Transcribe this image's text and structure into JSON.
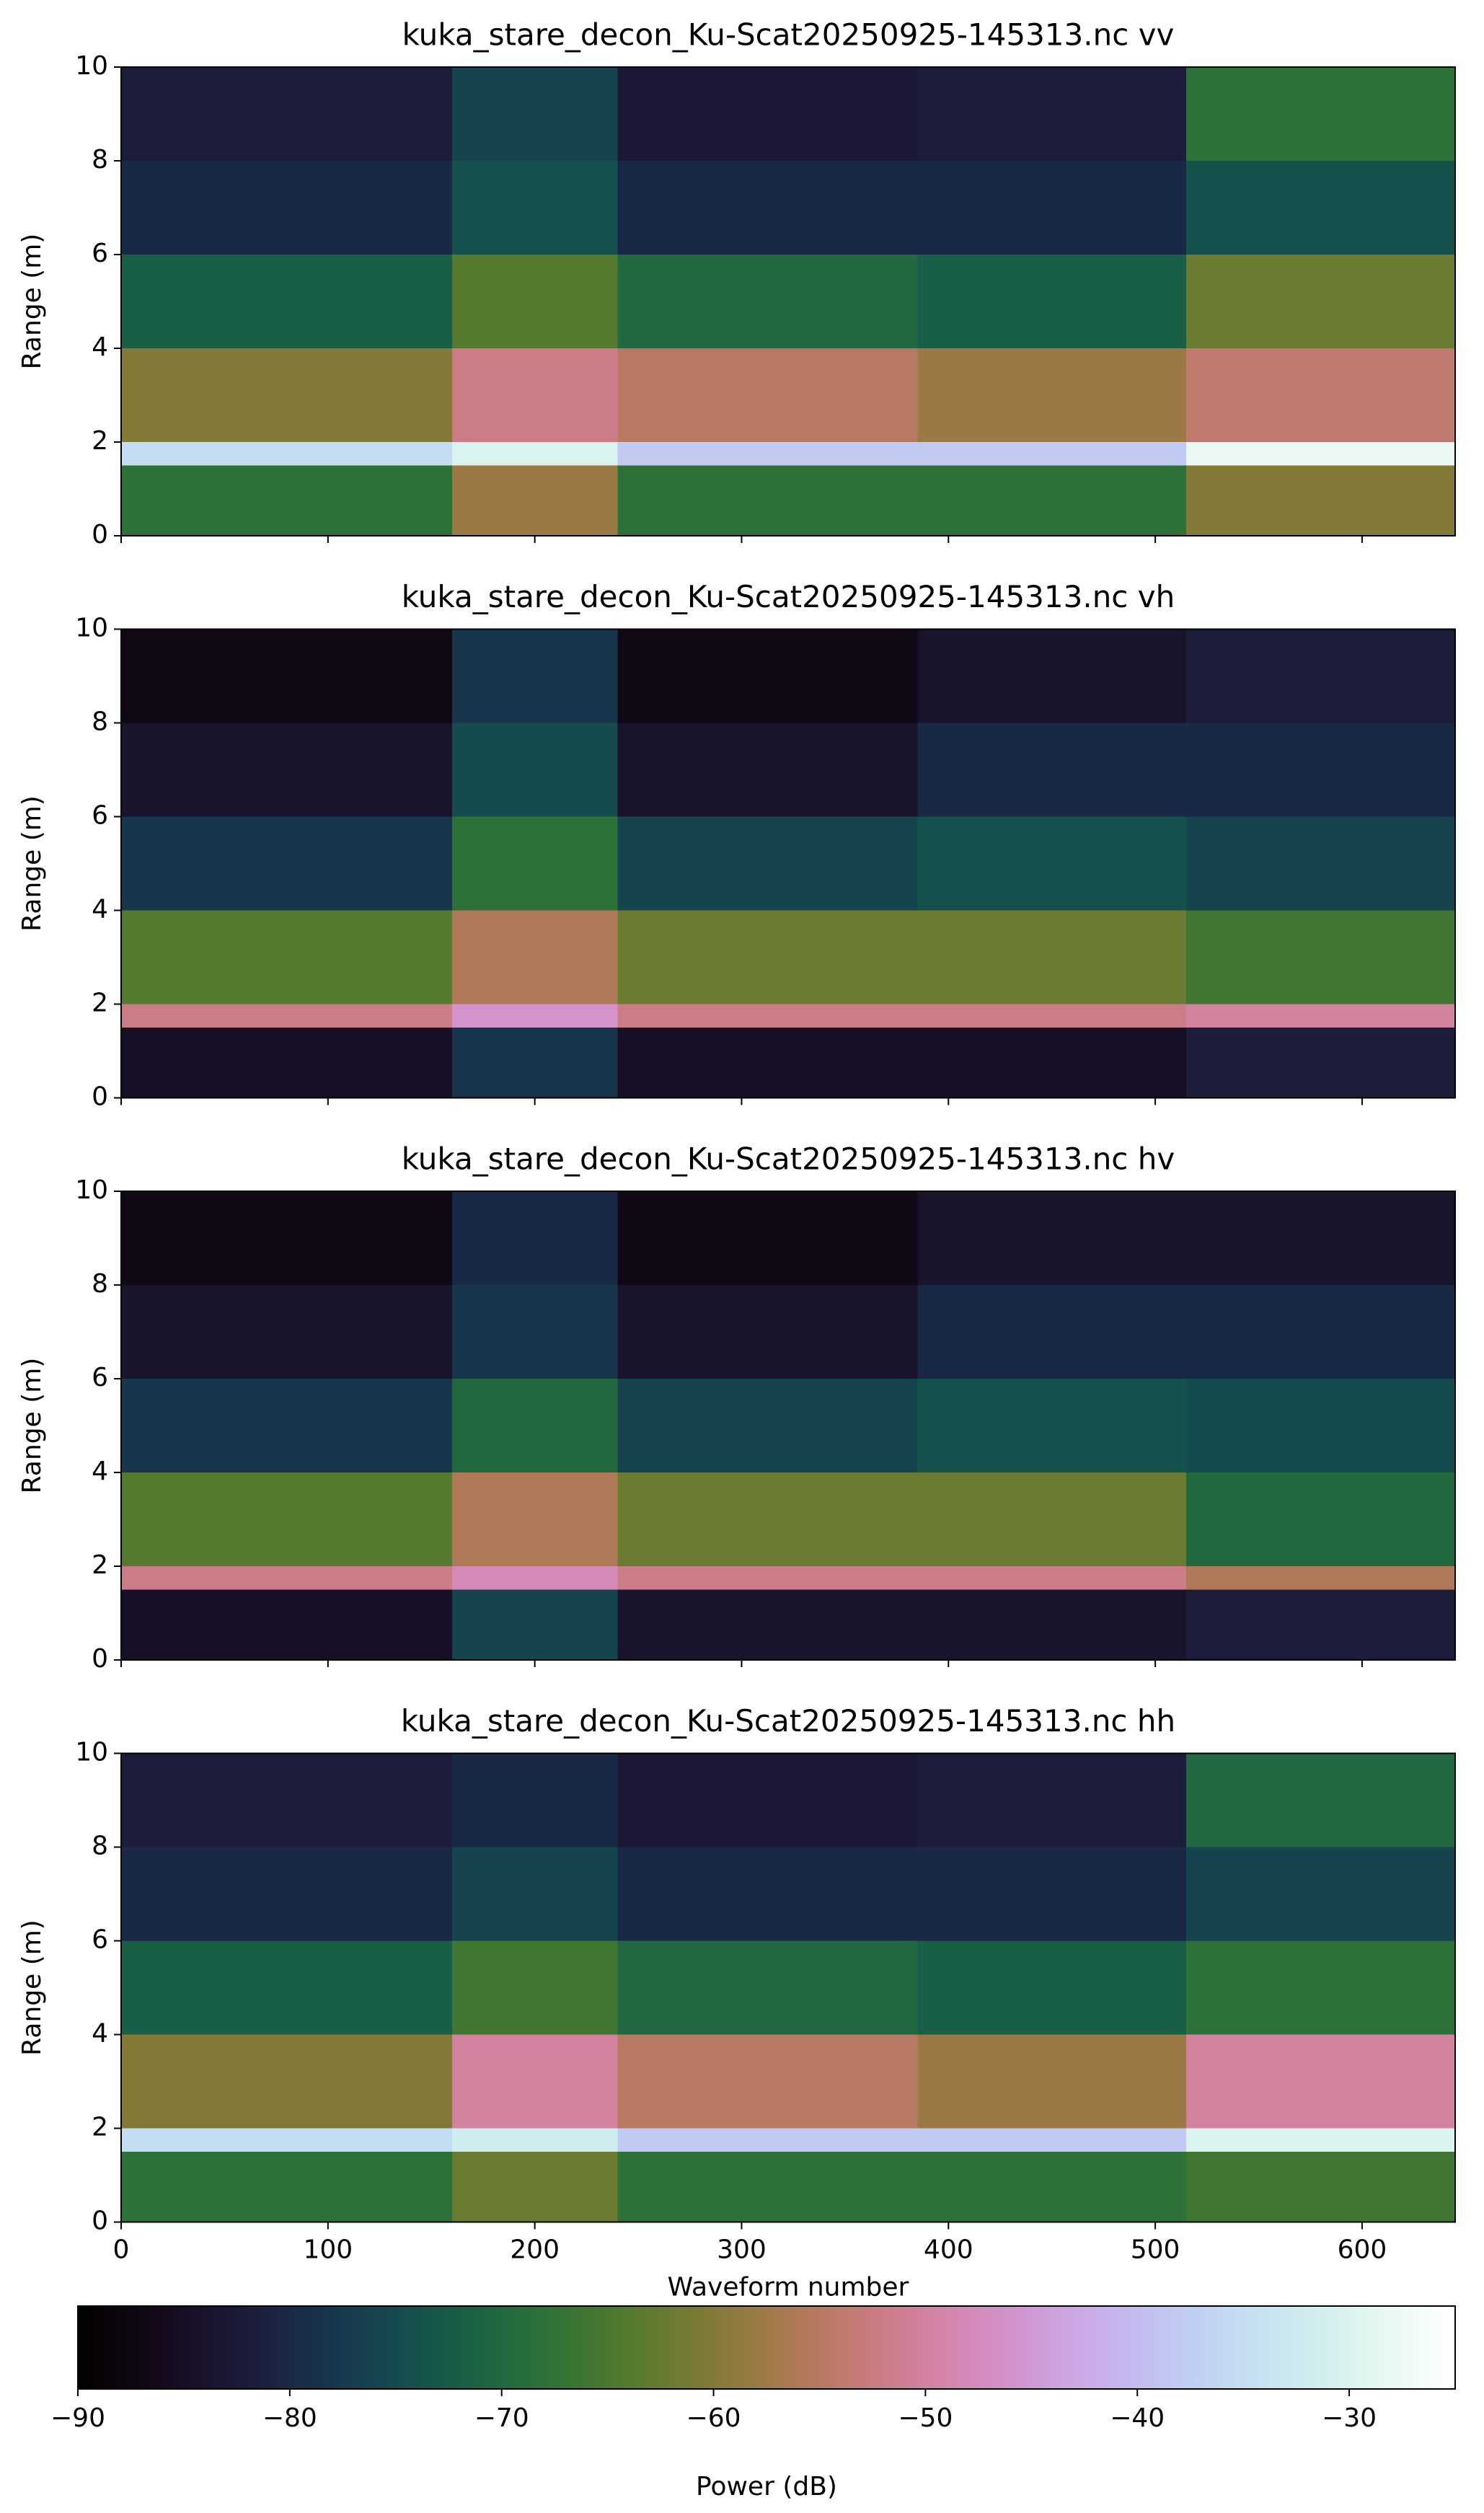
{
  "chart_data": [
    {
      "type": "heatmap",
      "title": "kuka_stare_decon_Ku-Scat20250925-145313.nc vv",
      "ylabel": "Range (m)",
      "xlim": [
        0,
        645
      ],
      "ylim": [
        10,
        0
      ],
      "xticks": [
        0,
        100,
        200,
        300,
        400,
        500,
        600
      ],
      "yticks": [
        0,
        2,
        4,
        6,
        8,
        10
      ],
      "xticklabels": false,
      "x_edges": [
        0,
        160,
        240,
        385,
        515,
        645
      ],
      "y_edges": [
        0,
        1.5,
        2,
        4,
        6,
        8,
        10
      ],
      "z": [
        [
          -68,
          -58,
          -68,
          -68,
          -60
        ],
        [
          -35,
          -30,
          -38,
          -38,
          -28
        ],
        [
          -60,
          -52,
          -55,
          -58,
          -54
        ],
        [
          -72,
          -64,
          -70,
          -72,
          -62
        ],
        [
          -80,
          -74,
          -80,
          -80,
          -74
        ],
        [
          -82,
          -76,
          -83,
          -82,
          -68
        ]
      ]
    },
    {
      "type": "heatmap",
      "title": "kuka_stare_decon_Ku-Scat20250925-145313.nc vh",
      "ylabel": "Range (m)",
      "xlim": [
        0,
        645
      ],
      "ylim": [
        10,
        0
      ],
      "xticks": [
        0,
        100,
        200,
        300,
        400,
        500,
        600
      ],
      "yticks": [
        0,
        2,
        4,
        6,
        8,
        10
      ],
      "xticklabels": false,
      "x_edges": [
        0,
        160,
        240,
        385,
        515,
        645
      ],
      "y_edges": [
        0,
        1.5,
        2,
        4,
        6,
        8,
        10
      ],
      "z": [
        [
          -85,
          -78,
          -85,
          -85,
          -82
        ],
        [
          -52,
          -46,
          -52,
          -52,
          -50
        ],
        [
          -64,
          -56,
          -62,
          -62,
          -66
        ],
        [
          -78,
          -68,
          -76,
          -74,
          -76
        ],
        [
          -84,
          -75,
          -84,
          -80,
          -80
        ],
        [
          -87,
          -78,
          -87,
          -84,
          -82
        ]
      ]
    },
    {
      "type": "heatmap",
      "title": "kuka_stare_decon_Ku-Scat20250925-145313.nc hv",
      "ylabel": "Range (m)",
      "xlim": [
        0,
        645
      ],
      "ylim": [
        10,
        0
      ],
      "xticks": [
        0,
        100,
        200,
        300,
        400,
        500,
        600
      ],
      "yticks": [
        0,
        2,
        4,
        6,
        8,
        10
      ],
      "xticklabels": false,
      "x_edges": [
        0,
        160,
        240,
        385,
        515,
        645
      ],
      "y_edges": [
        0,
        1.5,
        2,
        4,
        6,
        8,
        10
      ],
      "z": [
        [
          -85,
          -76,
          -84,
          -84,
          -82
        ],
        [
          -52,
          -48,
          -52,
          -52,
          -56
        ],
        [
          -64,
          -56,
          -62,
          -62,
          -70
        ],
        [
          -78,
          -70,
          -76,
          -74,
          -75
        ],
        [
          -84,
          -78,
          -84,
          -80,
          -80
        ],
        [
          -87,
          -80,
          -87,
          -84,
          -84
        ]
      ]
    },
    {
      "type": "heatmap",
      "title": "kuka_stare_decon_Ku-Scat20250925-145313.nc hh",
      "ylabel": "Range (m)",
      "xlabel": "Waveform number",
      "xlim": [
        0,
        645
      ],
      "ylim": [
        10,
        0
      ],
      "xticks": [
        0,
        100,
        200,
        300,
        400,
        500,
        600
      ],
      "yticks": [
        0,
        2,
        4,
        6,
        8,
        10
      ],
      "xticklabels": true,
      "x_edges": [
        0,
        160,
        240,
        385,
        515,
        645
      ],
      "y_edges": [
        0,
        1.5,
        2,
        4,
        6,
        8,
        10
      ],
      "z": [
        [
          -68,
          -62,
          -68,
          -68,
          -66
        ],
        [
          -35,
          -32,
          -38,
          -38,
          -30
        ],
        [
          -60,
          -50,
          -55,
          -58,
          -50
        ],
        [
          -72,
          -66,
          -70,
          -72,
          -68
        ],
        [
          -80,
          -76,
          -80,
          -80,
          -76
        ],
        [
          -82,
          -80,
          -83,
          -82,
          -70
        ]
      ]
    },
    {
      "type": "colorbar",
      "label": "Power (dB)",
      "colormap": "cubehelix",
      "clim": [
        -90,
        -25
      ],
      "ticks": [
        {
          "value": -90,
          "label": "−90"
        },
        {
          "value": -80,
          "label": "−80"
        },
        {
          "value": -70,
          "label": "−70"
        },
        {
          "value": -60,
          "label": "−60"
        },
        {
          "value": -50,
          "label": "−50"
        },
        {
          "value": -40,
          "label": "−40"
        },
        {
          "value": -30,
          "label": "−30"
        }
      ]
    }
  ]
}
